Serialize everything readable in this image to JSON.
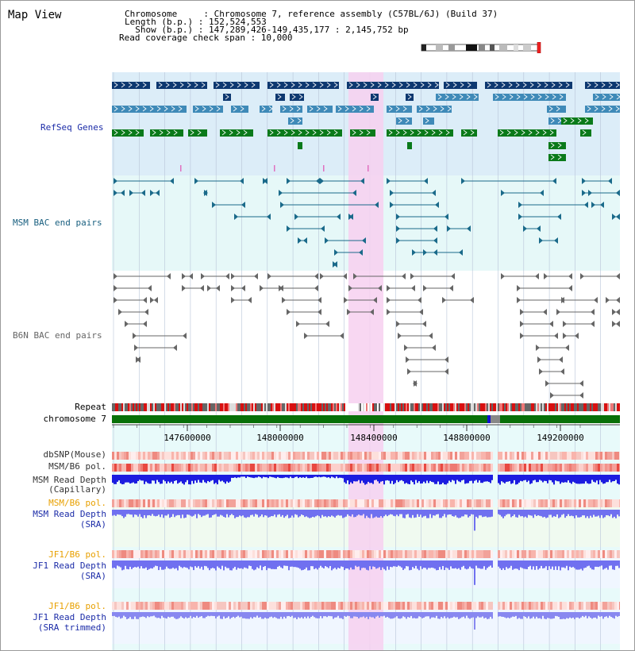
{
  "title": "Map View",
  "header": {
    "line1": "Chromosome     : Chromosome 7, reference assembly (C57BL/6J) (Build 37)",
    "line2": "Length (b.p.) : 152,524,553",
    "line3": "  Show (b.p.) : 147,289,426-149,435,177 : 2,145,752 bp",
    "line4": "Read coverage check span : 10,000"
  },
  "tracks": {
    "refseq": "RefSeq Genes",
    "msm_bac": "MSM BAC end pairs",
    "b6n_bac": "B6N BAC end pairs",
    "repeat": "Repeat",
    "chromosome": "chromosome 7",
    "dbsnp": "dbSNP(Mouse)",
    "msm_b6_pol": "MSM/B6 pol.",
    "msm_read_depth_cap_1": "MSM Read Depth",
    "msm_read_depth_cap_2": "(Capillary)",
    "msm_b6_pol_sra": "MSM/B6 pol.",
    "msm_read_depth_sra_1": "MSM Read Depth",
    "msm_read_depth_sra_2": "(SRA)",
    "jf1_b6_pol": "JF1/B6 pol.",
    "jf1_read_depth_1": "JF1 Read Depth",
    "jf1_read_depth_2": "(SRA)",
    "jf1_b6_pol_trim": "JF1/B6 pol.",
    "jf1_read_depth_trim_1": "JF1 Read Depth",
    "jf1_read_depth_trim_2": "(SRA trimmed)"
  },
  "axis": {
    "ticks": [
      "147600000",
      "148000000",
      "148400000",
      "148800000",
      "149200000"
    ]
  },
  "colors": {
    "refseq_dark": "#0d3870",
    "refseq_mid": "#3f8ab8",
    "refseq_green": "#0a7a1a",
    "msm_bac": "#1a6a8a",
    "b6n_bac": "#666666",
    "highlight": "#f7d0f0",
    "label_blue": "#1c2ca8",
    "label_teal": "#1a6080",
    "label_orange": "#e8a000",
    "depth_cap": "#1c1ce0",
    "depth_sra": "#7070f0"
  }
}
